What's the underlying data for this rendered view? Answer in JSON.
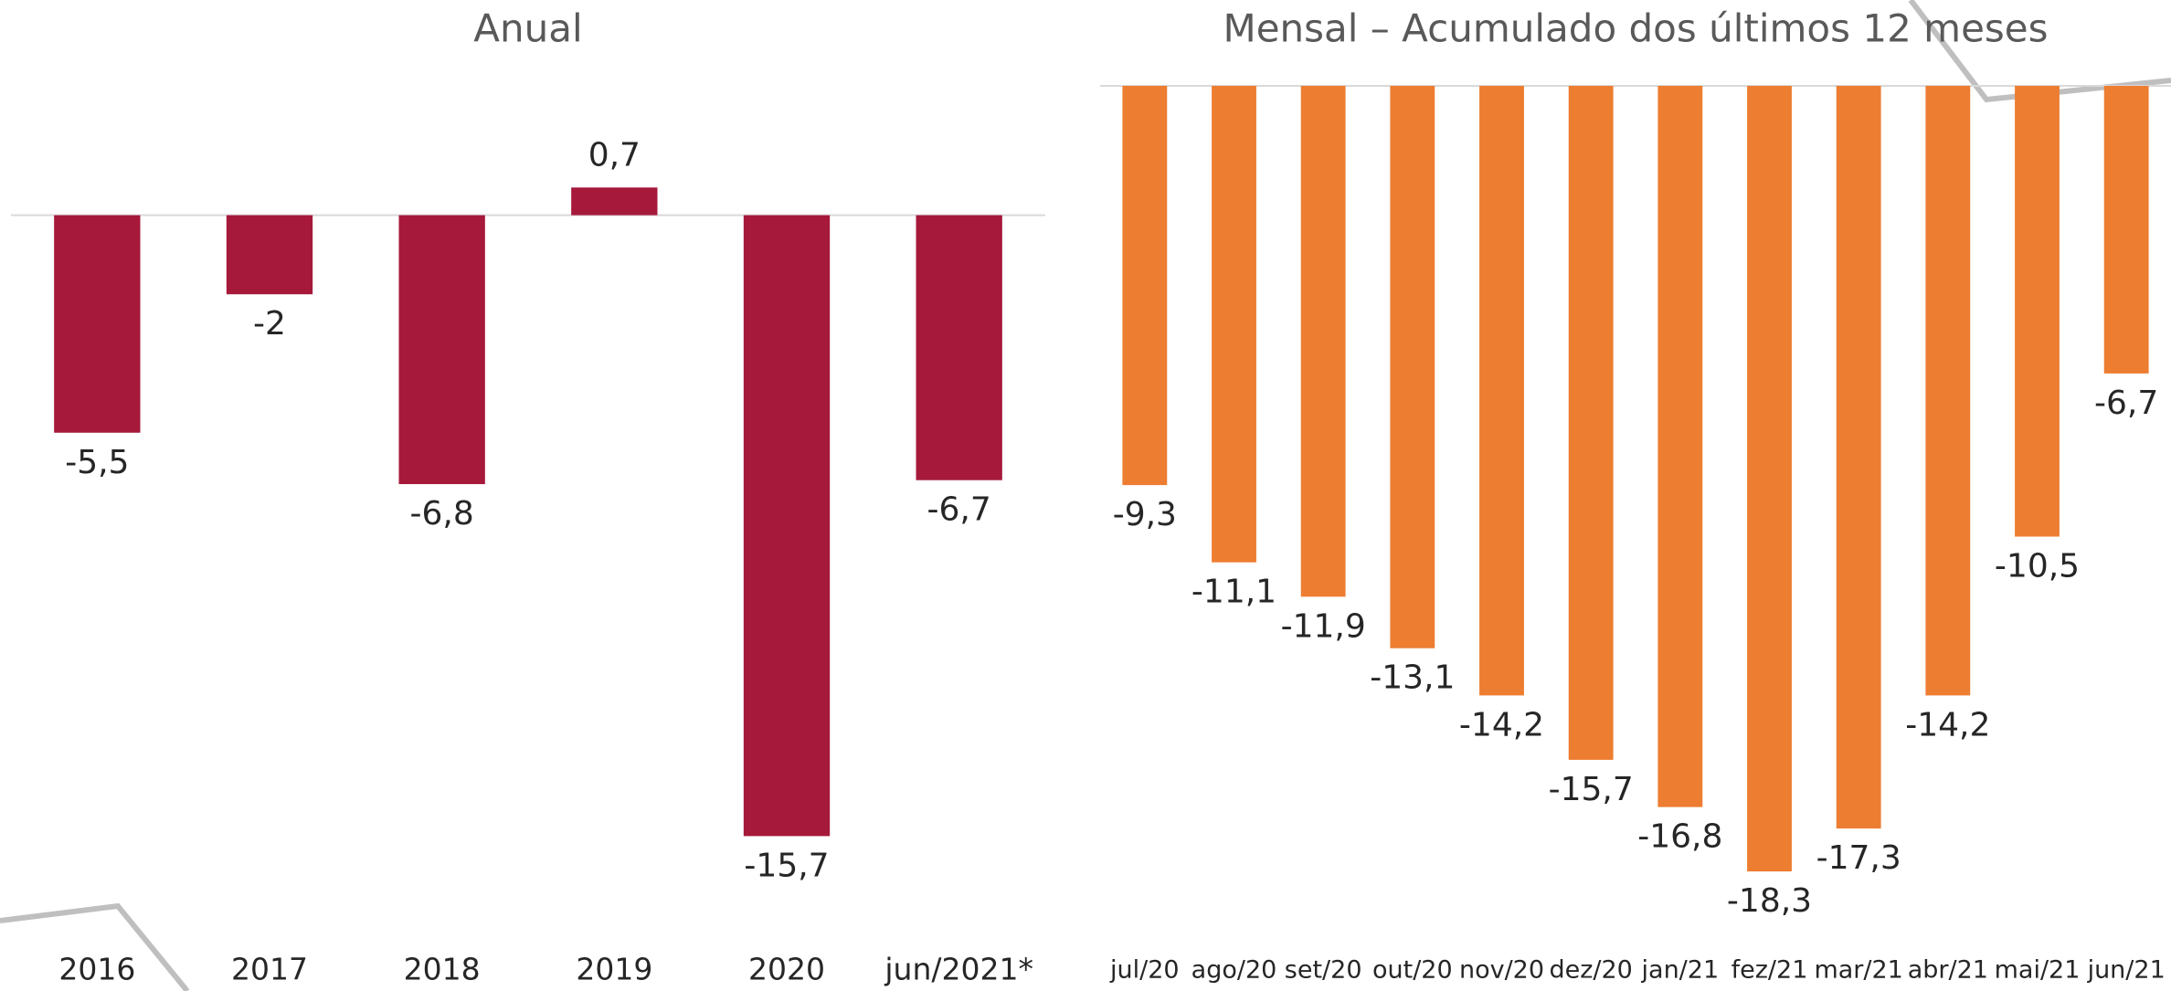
{
  "chart_data": [
    {
      "type": "bar",
      "title": "Anual",
      "categories": [
        "2016",
        "2017",
        "2018",
        "2019",
        "2020",
        "jun/2021*"
      ],
      "values": [
        -5.5,
        -2,
        -6.8,
        0.7,
        -15.7,
        -6.7
      ],
      "value_labels": [
        "-5,5",
        "-2",
        "-6,8",
        "0,7",
        "-15,7",
        "-6,7"
      ],
      "color": "#a6193b",
      "ylim": [
        -18,
        2
      ]
    },
    {
      "type": "bar",
      "title": "Mensal – Acumulado dos últimos 12 meses",
      "categories": [
        "jul/20",
        "ago/20",
        "set/20",
        "out/20",
        "nov/20",
        "dez/20",
        "jan/21",
        "fez/21",
        "mar/21",
        "abr/21",
        "mai/21",
        "jun/21"
      ],
      "values": [
        -9.3,
        -11.1,
        -11.9,
        -13.1,
        -14.2,
        -15.7,
        -16.8,
        -18.3,
        -17.3,
        -14.2,
        -10.5,
        -6.7
      ],
      "value_labels": [
        "-9,3",
        "-11,1",
        "-11,9",
        "-13,1",
        "-14,2",
        "-15,7",
        "-16,8",
        "-18,3",
        "-17,3",
        "-14,2",
        "-10,5",
        "-6,7"
      ],
      "color": "#ed7d31",
      "ylim": [
        -20,
        0
      ]
    }
  ]
}
